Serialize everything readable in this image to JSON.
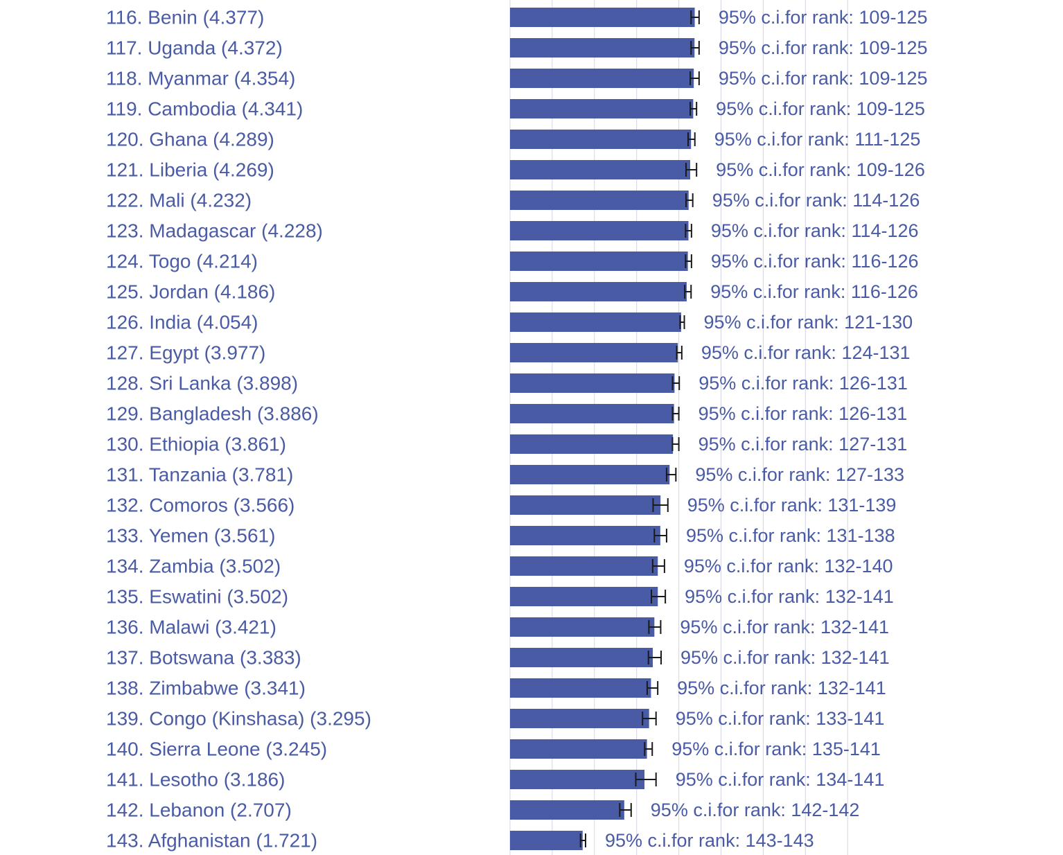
{
  "colors": {
    "bar": "#4a5ba6",
    "text": "#4a5ba6",
    "gridline": "#d4d4e4",
    "error_bar": "#1a1a1a"
  },
  "chart_data": {
    "type": "bar",
    "orientation": "horizontal",
    "grid": true,
    "categories": [
      "116. Benin (4.377)",
      "117. Uganda (4.372)",
      "118. Myanmar (4.354)",
      "119. Cambodia (4.341)",
      "120. Ghana (4.289)",
      "121. Liberia (4.269)",
      "122. Mali (4.232)",
      "123. Madagascar (4.228)",
      "124. Togo (4.214)",
      "125. Jordan (4.186)",
      "126. India (4.054)",
      "127. Egypt (3.977)",
      "128. Sri Lanka (3.898)",
      "129. Bangladesh (3.886)",
      "130. Ethiopia (3.861)",
      "131. Tanzania (3.781)",
      "132. Comoros (3.566)",
      "133. Yemen (3.561)",
      "134. Zambia (3.502)",
      "135. Eswatini (3.502)",
      "136. Malawi (3.421)",
      "137. Botswana (3.383)",
      "138. Zimbabwe (3.341)",
      "139. Congo  (Kinshasa) (3.295)",
      "140. Sierra Leone (3.245)",
      "141. Lesotho (3.186)",
      "142. Lebanon (2.707)",
      "143. Afghanistan (1.721)"
    ],
    "values": [
      4.377,
      4.372,
      4.354,
      4.341,
      4.289,
      4.269,
      4.232,
      4.228,
      4.214,
      4.186,
      4.054,
      3.977,
      3.898,
      3.886,
      3.861,
      3.781,
      3.566,
      3.561,
      3.502,
      3.502,
      3.421,
      3.383,
      3.341,
      3.295,
      3.245,
      3.186,
      2.707,
      1.721
    ],
    "ci_low": [
      4.29,
      4.29,
      4.27,
      4.27,
      4.22,
      4.17,
      4.17,
      4.16,
      4.16,
      4.14,
      4.03,
      3.95,
      3.85,
      3.85,
      3.85,
      3.71,
      3.39,
      3.42,
      3.38,
      3.35,
      3.29,
      3.28,
      3.25,
      3.14,
      3.19,
      2.98,
      2.6,
      1.67
    ],
    "ci_high": [
      4.48,
      4.48,
      4.48,
      4.42,
      4.38,
      4.42,
      4.33,
      4.3,
      4.3,
      4.29,
      4.13,
      4.07,
      4.01,
      4.0,
      4.0,
      3.93,
      3.74,
      3.71,
      3.66,
      3.68,
      3.57,
      3.58,
      3.5,
      3.46,
      3.37,
      3.46,
      2.87,
      1.79
    ],
    "ci_labels": [
      "95% c.i.for rank: 109-125",
      "95% c.i.for rank: 109-125",
      "95% c.i.for rank: 109-125",
      "95% c.i.for rank: 109-125",
      "95% c.i.for rank: 111-125",
      "95% c.i.for rank: 109-126",
      "95% c.i.for rank: 114-126",
      "95% c.i.for rank: 114-126",
      "95% c.i.for rank: 116-126",
      "95% c.i.for rank: 116-126",
      "95% c.i.for rank: 121-130",
      "95% c.i.for rank: 124-131",
      "95% c.i.for rank: 126-131",
      "95% c.i.for rank: 126-131",
      "95% c.i.for rank: 127-131",
      "95% c.i.for rank: 127-133",
      "95% c.i.for rank: 131-139",
      "95% c.i.for rank: 131-138",
      "95% c.i.for rank: 132-140",
      "95% c.i.for rank: 132-141",
      "95% c.i.for rank: 132-141",
      "95% c.i.for rank: 132-141",
      "95% c.i.for rank: 132-141",
      "95% c.i.for rank: 133-141",
      "95% c.i.for rank: 135-141",
      "95% c.i.for rank: 134-141",
      "95% c.i.for rank: 142-142",
      "95% c.i.for rank: 143-143"
    ],
    "xlim": [
      0,
      8
    ]
  }
}
